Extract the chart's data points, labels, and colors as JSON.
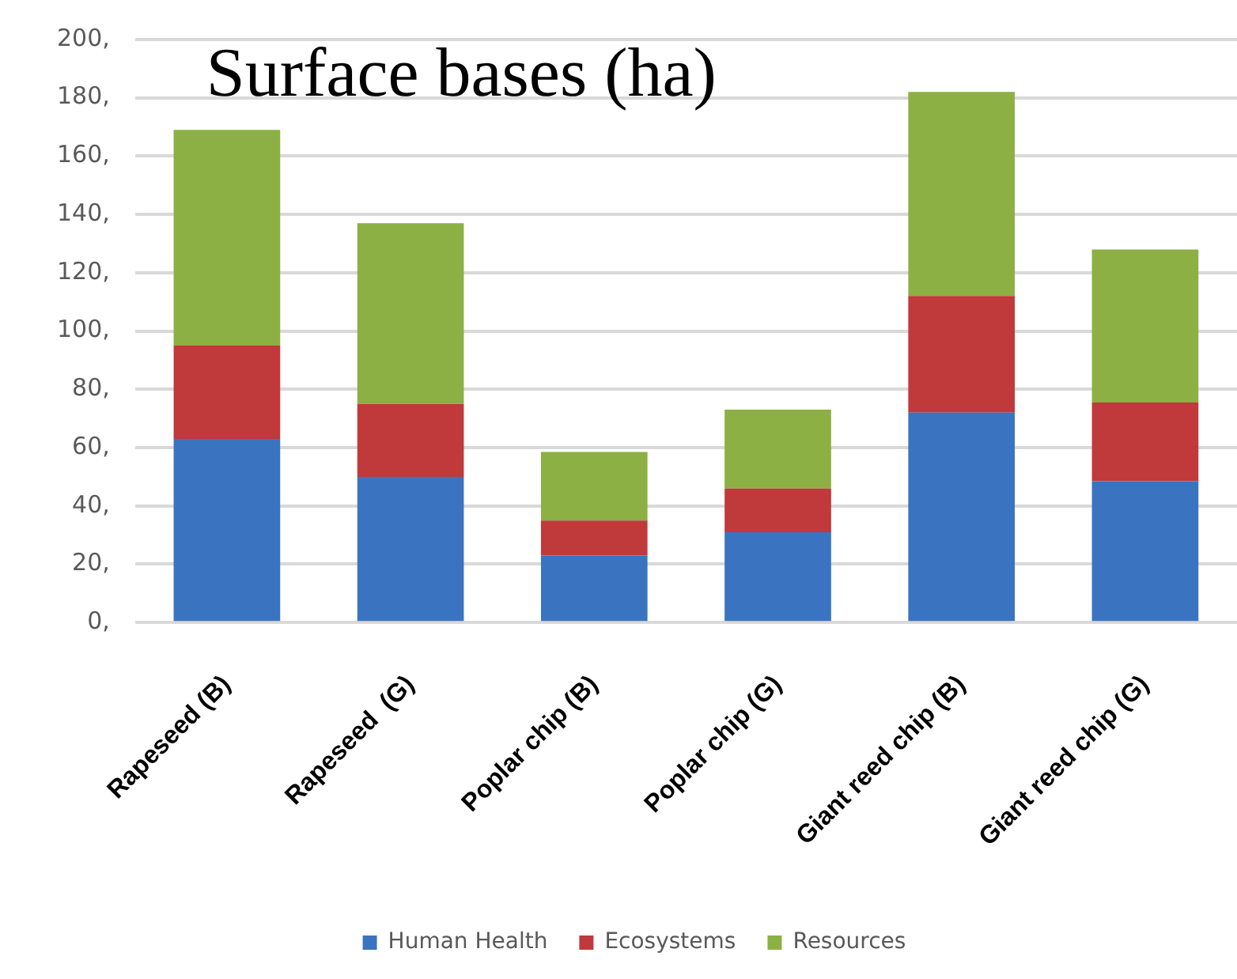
{
  "chart_data": {
    "type": "bar",
    "stacked": true,
    "title": "Surface bases (ha)",
    "categories": [
      "Rapeseed (B)",
      "Rapeseed  (G)",
      "Poplar chip (B)",
      "Poplar chip (G)",
      "Giant reed chip (B)",
      "Giant reed chip (G)"
    ],
    "series": [
      {
        "name": "Human Health",
        "color": "#3a74c0",
        "values": [
          63,
          50,
          23,
          31,
          72,
          48.5
        ]
      },
      {
        "name": "Ecosystems",
        "color": "#c0393b",
        "values": [
          32,
          25,
          12,
          15,
          40,
          27
        ]
      },
      {
        "name": "Resources",
        "color": "#8cb043",
        "values": [
          74,
          62,
          23.5,
          27,
          70,
          52.5
        ]
      }
    ],
    "ylim": [
      0,
      200
    ],
    "yticks": [
      {
        "value": 0,
        "label": "0,"
      },
      {
        "value": 20,
        "label": "20,"
      },
      {
        "value": 40,
        "label": "40,"
      },
      {
        "value": 60,
        "label": "60,"
      },
      {
        "value": 80,
        "label": "80,"
      },
      {
        "value": 100,
        "label": "100,"
      },
      {
        "value": 120,
        "label": "120,"
      },
      {
        "value": 140,
        "label": "140,"
      },
      {
        "value": 160,
        "label": "160,"
      },
      {
        "value": 180,
        "label": "180,"
      },
      {
        "value": 200,
        "label": "200,"
      }
    ],
    "grid": "y",
    "legend": "bottom"
  }
}
